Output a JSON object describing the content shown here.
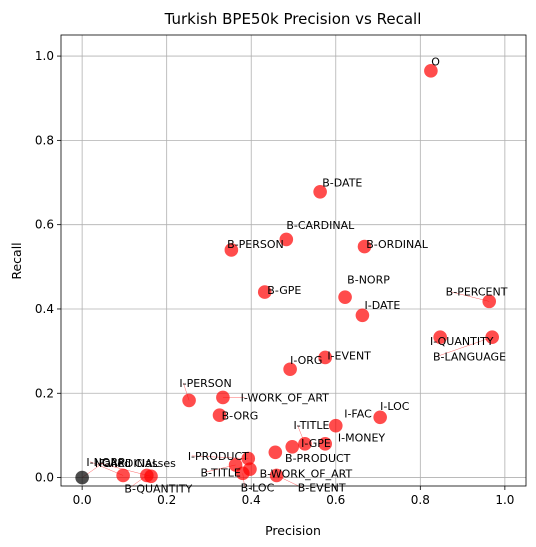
{
  "chart_data": {
    "type": "scatter",
    "title": "Turkish BPE50k Precision vs Recall",
    "xlabel": "Precision",
    "ylabel": "Recall",
    "xlim": [
      -0.05,
      1.05
    ],
    "ylim": [
      -0.02,
      1.05
    ],
    "xticks": [
      0.0,
      0.2,
      0.4,
      0.6,
      0.8,
      1.0
    ],
    "yticks": [
      0.0,
      0.2,
      0.4,
      0.6,
      0.8,
      1.0
    ],
    "xtick_labels": [
      "0.0",
      "0.2",
      "0.4",
      "0.6",
      "0.8",
      "1.0"
    ],
    "ytick_labels": [
      "0.0",
      "0.2",
      "0.4",
      "0.6",
      "0.8",
      "1.0"
    ],
    "grid": true,
    "colors": {
      "point": "#ff0000",
      "failed_point": "#000000"
    },
    "points": [
      {
        "label": "O",
        "x": 0.825,
        "y": 0.965,
        "color": "#ff0000",
        "lx": 0.826,
        "ly": 0.978
      },
      {
        "label": "B-DATE",
        "x": 0.563,
        "y": 0.678,
        "color": "#ff0000",
        "lx": 0.568,
        "ly": 0.69
      },
      {
        "label": "B-CARDINAL",
        "x": 0.483,
        "y": 0.565,
        "color": "#ff0000",
        "lx": 0.483,
        "ly": 0.59
      },
      {
        "label": "B-PERSON",
        "x": 0.353,
        "y": 0.54,
        "color": "#ff0000",
        "lx": 0.343,
        "ly": 0.545
      },
      {
        "label": "B-ORDINAL",
        "x": 0.668,
        "y": 0.548,
        "color": "#ff0000",
        "lx": 0.672,
        "ly": 0.545
      },
      {
        "label": "B-GPE",
        "x": 0.432,
        "y": 0.44,
        "color": "#ff0000",
        "lx": 0.438,
        "ly": 0.436
      },
      {
        "label": "B-NORP",
        "x": 0.622,
        "y": 0.428,
        "color": "#ff0000",
        "lx": 0.627,
        "ly": 0.46
      },
      {
        "label": "I-DATE",
        "x": 0.663,
        "y": 0.385,
        "color": "#ff0000",
        "lx": 0.668,
        "ly": 0.4
      },
      {
        "label": "B-PERCENT",
        "x": 0.963,
        "y": 0.418,
        "color": "#ff0000",
        "lx": 0.86,
        "ly": 0.432
      },
      {
        "label": "I-QUANTITY",
        "x": 0.847,
        "y": 0.333,
        "color": "#ff0000",
        "lx": 0.823,
        "ly": 0.315
      },
      {
        "label": "B-LANGUAGE",
        "x": 0.97,
        "y": 0.333,
        "color": "#ff0000",
        "lx": 0.83,
        "ly": 0.278
      },
      {
        "label": "I-ORG",
        "x": 0.492,
        "y": 0.257,
        "color": "#ff0000",
        "lx": 0.492,
        "ly": 0.27
      },
      {
        "label": "I-EVENT",
        "x": 0.575,
        "y": 0.285,
        "color": "#ff0000",
        "lx": 0.58,
        "ly": 0.28
      },
      {
        "label": "I-PERSON",
        "x": 0.253,
        "y": 0.183,
        "color": "#ff0000",
        "lx": 0.23,
        "ly": 0.215
      },
      {
        "label": "I-WORK_OF_ART",
        "x": 0.333,
        "y": 0.19,
        "color": "#ff0000",
        "lx": 0.375,
        "ly": 0.18
      },
      {
        "label": "B-ORG",
        "x": 0.325,
        "y": 0.148,
        "color": "#ff0000",
        "lx": 0.33,
        "ly": 0.138
      },
      {
        "label": "I-LOC",
        "x": 0.705,
        "y": 0.143,
        "color": "#ff0000",
        "lx": 0.705,
        "ly": 0.16
      },
      {
        "label": "I-FAC",
        "x": 0.6,
        "y": 0.123,
        "color": "#ff0000",
        "lx": 0.62,
        "ly": 0.143
      },
      {
        "label": "I-TITLE",
        "x": 0.527,
        "y": 0.08,
        "color": "#ff0000",
        "lx": 0.5,
        "ly": 0.115
      },
      {
        "label": "I-MONEY",
        "x": 0.575,
        "y": 0.08,
        "color": "#ff0000",
        "lx": 0.605,
        "ly": 0.085
      },
      {
        "label": "I-GPE",
        "x": 0.497,
        "y": 0.073,
        "color": "#ff0000",
        "lx": 0.518,
        "ly": 0.073
      },
      {
        "label": "B-PRODUCT",
        "x": 0.457,
        "y": 0.06,
        "color": "#ff0000",
        "lx": 0.48,
        "ly": 0.037
      },
      {
        "label": "I-PRODUCT",
        "x": 0.393,
        "y": 0.045,
        "color": "#ff0000",
        "lx": 0.25,
        "ly": 0.042
      },
      {
        "label": "B-TITLE",
        "x": 0.363,
        "y": 0.03,
        "color": "#ff0000",
        "lx": 0.28,
        "ly": 0.003
      },
      {
        "label": "B-WORK_OF_ART",
        "x": 0.397,
        "y": 0.02,
        "color": "#ff0000",
        "lx": 0.42,
        "ly": 0.0
      },
      {
        "label": "B-LOC",
        "x": 0.38,
        "y": 0.01,
        "color": "#ff0000",
        "lx": 0.375,
        "ly": -0.033
      },
      {
        "label": "B-EVENT",
        "x": 0.46,
        "y": 0.005,
        "color": "#ff0000",
        "lx": 0.51,
        "ly": -0.033
      },
      {
        "label": "I-NORP",
        "x": 0.097,
        "y": 0.005,
        "color": "#ff0000",
        "lx": 0.01,
        "ly": 0.028
      },
      {
        "label": "B-QUANTITY",
        "x": 0.153,
        "y": 0.005,
        "color": "#ff0000",
        "lx": 0.1,
        "ly": -0.036
      },
      {
        "label": "I-CARDINAL",
        "x": 0.163,
        "y": 0.003,
        "color": "#ff0000",
        "lx": 0.03,
        "ly": 0.025
      },
      {
        "label": "Failed Classes",
        "x": 0.0,
        "y": 0.0,
        "color": "#000000",
        "lx": 0.04,
        "ly": 0.025
      }
    ]
  }
}
